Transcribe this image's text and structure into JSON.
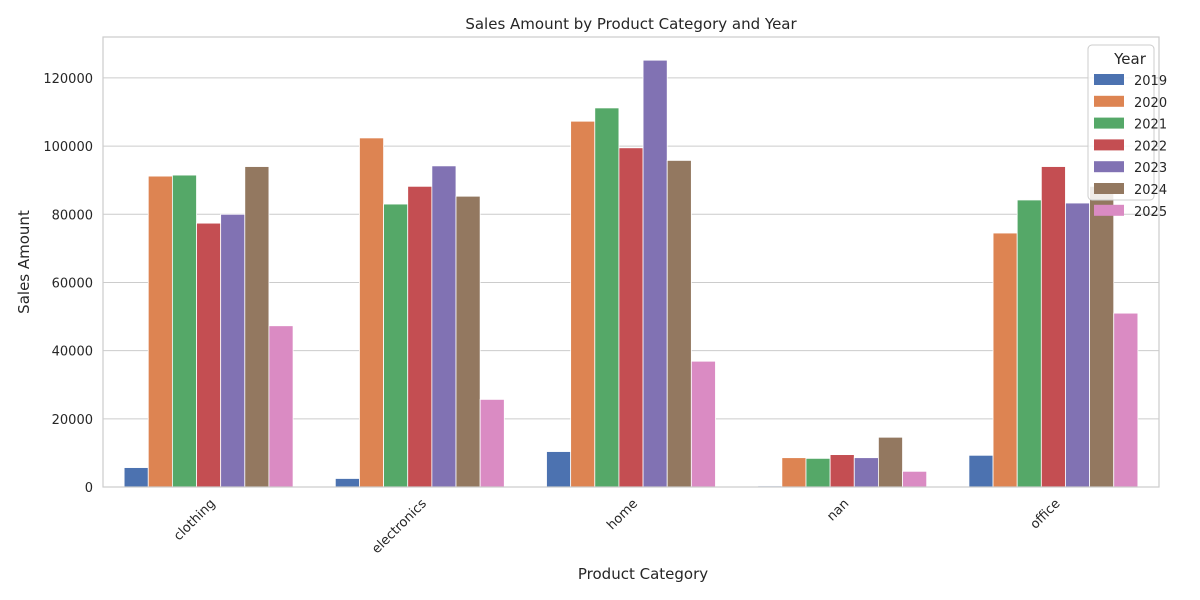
{
  "chart_data": {
    "type": "bar",
    "title": "Sales Amount by Product Category and Year",
    "xlabel": "Product Category",
    "ylabel": "Sales Amount",
    "ylim": [
      0,
      132000
    ],
    "yticks": [
      0,
      20000,
      40000,
      60000,
      80000,
      100000,
      120000
    ],
    "grid": true,
    "legend_title": "Year",
    "legend_position": "top-right",
    "categories": [
      "clothing",
      "electronics",
      "home",
      "nan",
      "office"
    ],
    "series": [
      {
        "name": "2019",
        "color": "#4c72b0",
        "values": [
          5700,
          2500,
          10400,
          300,
          9300
        ]
      },
      {
        "name": "2020",
        "color": "#dd8452",
        "values": [
          91200,
          102400,
          107300,
          8600,
          74500
        ]
      },
      {
        "name": "2021",
        "color": "#55a868",
        "values": [
          91500,
          83000,
          111200,
          8400,
          84200
        ]
      },
      {
        "name": "2022",
        "color": "#c44e52",
        "values": [
          77400,
          88200,
          99500,
          9500,
          94000
        ]
      },
      {
        "name": "2023",
        "color": "#8172b3",
        "values": [
          80000,
          94200,
          125200,
          8600,
          83300
        ]
      },
      {
        "name": "2024",
        "color": "#937860",
        "values": [
          94000,
          85300,
          95800,
          14600,
          88200
        ]
      },
      {
        "name": "2025",
        "color": "#da8bc3",
        "values": [
          47300,
          25700,
          36900,
          4600,
          51000
        ]
      }
    ]
  }
}
